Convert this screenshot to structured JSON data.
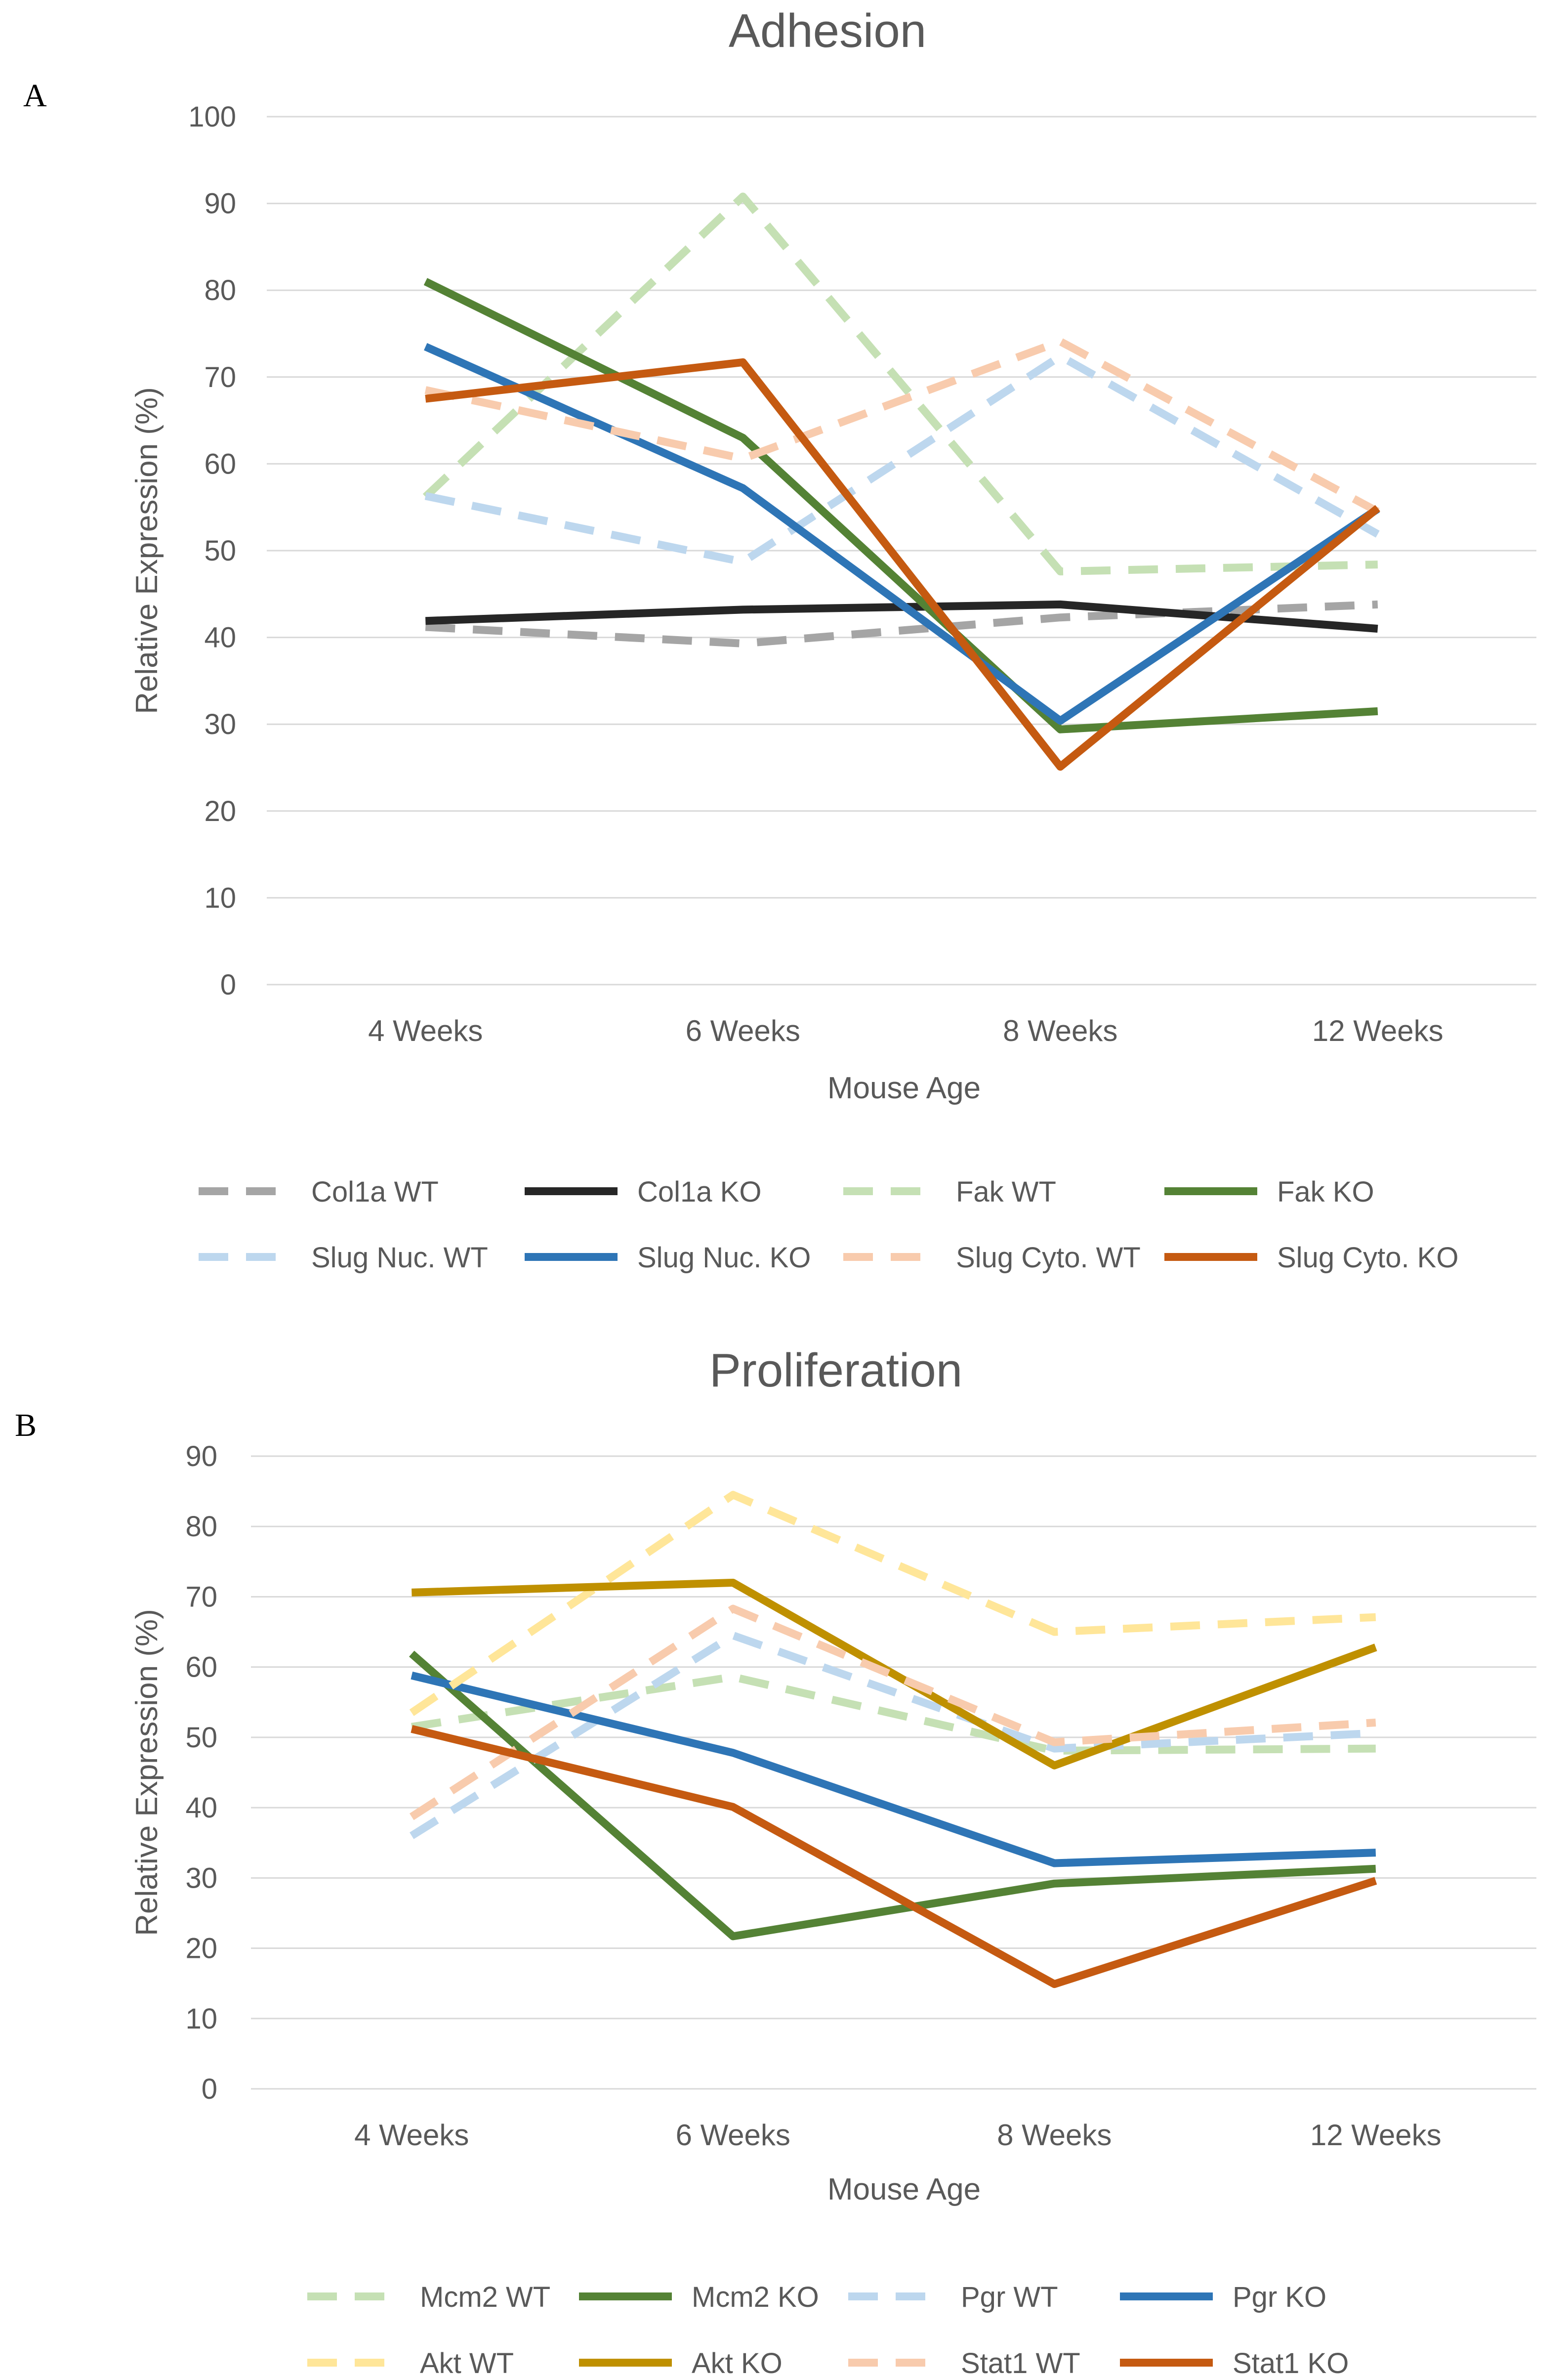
{
  "panels": [
    {
      "letter": "A",
      "chart_data": {
        "type": "line",
        "title": "Adhesion",
        "xlabel": "Mouse Age",
        "ylabel": "Relative Expression (%)",
        "categories": [
          "4 Weeks",
          "6 Weeks",
          "8 Weeks",
          "12 Weeks"
        ],
        "ylim": [
          0,
          100
        ],
        "ytick_step": 10,
        "grid": true,
        "legend_position": "bottom",
        "series": [
          {
            "name": "Col1a WT",
            "color": "#a5a5a5",
            "dashed": true,
            "values": [
              41.2,
              39.3,
              42.3,
              43.8
            ]
          },
          {
            "name": "Col1a KO",
            "color": "#262626",
            "dashed": false,
            "values": [
              41.9,
              43.2,
              43.8,
              41.0
            ]
          },
          {
            "name": "Fak WT",
            "color": "#c5e0b4",
            "dashed": true,
            "values": [
              56.2,
              90.8,
              47.6,
              48.4
            ]
          },
          {
            "name": "Fak KO",
            "color": "#548235",
            "dashed": false,
            "values": [
              81.0,
              63.0,
              29.4,
              31.5
            ]
          },
          {
            "name": "Slug Nuc. WT",
            "color": "#bdd7ee",
            "dashed": true,
            "values": [
              56.3,
              48.7,
              72.4,
              51.9
            ]
          },
          {
            "name": "Slug Nuc. KO",
            "color": "#2e75b6",
            "dashed": false,
            "values": [
              73.5,
              57.2,
              30.4,
              54.8
            ]
          },
          {
            "name": "Slug Cyto. WT",
            "color": "#f8cbad",
            "dashed": true,
            "values": [
              68.5,
              60.6,
              74.1,
              54.5
            ]
          },
          {
            "name": "Slug Cyto. KO",
            "color": "#c55a11",
            "dashed": false,
            "values": [
              67.5,
              71.7,
              25.1,
              54.9
            ]
          }
        ]
      }
    },
    {
      "letter": "B",
      "chart_data": {
        "type": "line",
        "title": "Proliferation",
        "xlabel": "Mouse Age",
        "ylabel": "Relative Expression (%)",
        "categories": [
          "4 Weeks",
          "6 Weeks",
          "8 Weeks",
          "12 Weeks"
        ],
        "ylim": [
          0,
          90
        ],
        "ytick_step": 10,
        "grid": true,
        "legend_position": "bottom",
        "series": [
          {
            "name": "Mcm2 WT",
            "color": "#c5e0b4",
            "dashed": true,
            "values": [
              51.5,
              58.6,
              48.1,
              48.4
            ]
          },
          {
            "name": "Mcm2 KO",
            "color": "#548235",
            "dashed": false,
            "values": [
              61.9,
              21.7,
              29.2,
              31.3
            ]
          },
          {
            "name": "Pgr WT",
            "color": "#bdd7ee",
            "dashed": true,
            "values": [
              36.0,
              64.5,
              48.4,
              50.6
            ]
          },
          {
            "name": "Pgr KO",
            "color": "#2e75b6",
            "dashed": false,
            "values": [
              58.8,
              47.8,
              32.1,
              33.6
            ]
          },
          {
            "name": "Akt WT",
            "color": "#ffe699",
            "dashed": true,
            "values": [
              53.5,
              84.5,
              65.0,
              67.1
            ]
          },
          {
            "name": "Akt KO",
            "color": "#bf9000",
            "dashed": false,
            "values": [
              70.6,
              72.0,
              46.0,
              62.8
            ]
          },
          {
            "name": "Stat1 WT",
            "color": "#f8cbad",
            "dashed": true,
            "values": [
              38.7,
              68.3,
              49.3,
              52.1
            ]
          },
          {
            "name": "Stat1 KO",
            "color": "#c55a11",
            "dashed": false,
            "values": [
              51.2,
              40.1,
              14.9,
              29.6
            ]
          }
        ]
      }
    }
  ]
}
